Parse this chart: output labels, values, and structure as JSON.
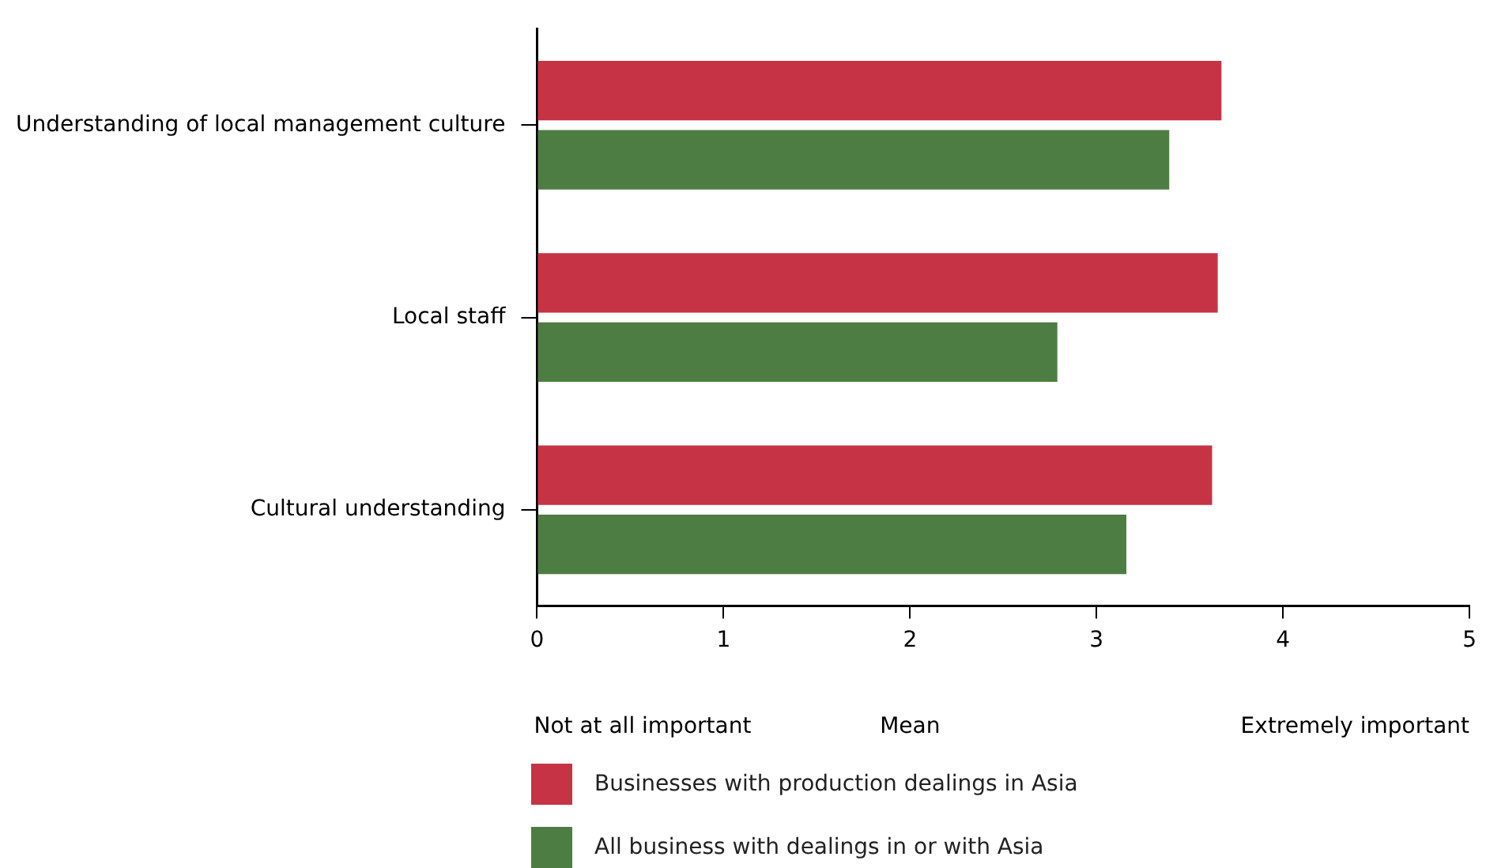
{
  "chart_data": {
    "type": "bar",
    "orientation": "horizontal",
    "xlabel": "Mean",
    "categories": [
      "Understanding of local management culture",
      "Local staff",
      "Cultural understanding"
    ],
    "series": [
      {
        "name": "Businesses with production dealings in Asia",
        "color": "#c63345",
        "values": [
          3.67,
          3.65,
          3.62
        ]
      },
      {
        "name": "All business with dealings in or with Asia",
        "color": "#4e7d44",
        "values": [
          3.39,
          2.79,
          3.16
        ]
      }
    ],
    "xlim": [
      0,
      5
    ],
    "xticks": [
      0,
      1,
      2,
      3,
      4,
      5
    ],
    "grid": false,
    "legend": "bottom",
    "annotations": [
      "Not at all important",
      "Extremely important"
    ]
  }
}
